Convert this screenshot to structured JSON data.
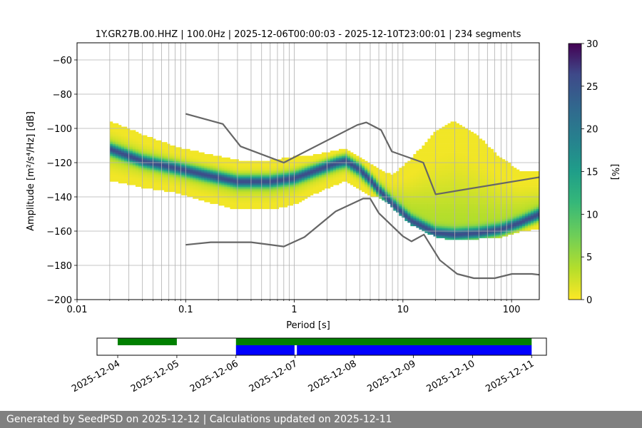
{
  "chart_data": [
    {
      "type": "heatmap",
      "title": "1Y.GR27B.00.HHZ | 100.0Hz | 2025-12-06T00:00:03 - 2025-12-10T23:00:01 | 234 segments",
      "xlabel": "Period [s]",
      "ylabel": "Amplitude [m²/s⁴/Hz] [dB]",
      "xscale": "log",
      "xlim": [
        0.01,
        180
      ],
      "ylim": [
        -200,
        -50
      ],
      "xticks": [
        "0.01",
        "0.1",
        "1",
        "10",
        "100"
      ],
      "yticks": [
        -60,
        -80,
        -100,
        -120,
        -140,
        -160,
        -180,
        -200
      ],
      "grid": true,
      "psd_mode_curve": {
        "period": [
          0.02,
          0.04,
          0.08,
          0.15,
          0.3,
          0.6,
          1.0,
          1.5,
          2.5,
          3.0,
          4.0,
          5.0,
          6.0,
          8.0,
          12,
          20,
          30,
          50,
          80,
          120,
          180
        ],
        "db": [
          -112,
          -119,
          -123,
          -127,
          -131,
          -131,
          -129,
          -125,
          -120,
          -119,
          -124,
          -130,
          -136,
          -144,
          -154,
          -161,
          -162,
          -161,
          -159,
          -155,
          -150
        ]
      },
      "psd_spread": {
        "period": [
          0.02,
          0.04,
          0.08,
          0.15,
          0.3,
          0.6,
          1.0,
          1.5,
          2.5,
          3.0,
          4.0,
          5.0,
          6.0,
          8.0,
          12,
          20,
          30,
          50,
          80,
          120,
          180
        ],
        "db_low": [
          -130,
          -134,
          -137,
          -142,
          -147,
          -147,
          -144,
          -138,
          -132,
          -130,
          -135,
          -139,
          -140,
          -145,
          -155,
          -163,
          -165,
          -164,
          -163,
          -160,
          -158
        ],
        "db_high": [
          -96,
          -104,
          -111,
          -115,
          -119,
          -119,
          -117,
          -116,
          -113,
          -112,
          -117,
          -121,
          -124,
          -128,
          -118,
          -102,
          -96,
          -105,
          -118,
          -125,
          -126
        ]
      },
      "noise_model_high": {
        "period": [
          0.1,
          0.22,
          0.32,
          0.8,
          3.8,
          4.6,
          6.3,
          7.9,
          15.4,
          20,
          180
        ],
        "db": [
          -91.5,
          -97.4,
          -110.5,
          -120,
          -98,
          -96.5,
          -101,
          -113.5,
          -120,
          -138.5,
          -128.5
        ]
      },
      "noise_model_low": {
        "period": [
          0.1,
          0.17,
          0.4,
          0.8,
          1.24,
          2.4,
          4.3,
          5.0,
          6.0,
          10,
          12,
          15.6,
          21.9,
          31.6,
          45,
          70,
          101,
          154,
          180
        ],
        "db": [
          -168,
          -166.5,
          -166.5,
          -169,
          -163.5,
          -148.5,
          -141,
          -141,
          -149.5,
          -163,
          -166,
          -162,
          -177,
          -185,
          -187.5,
          -187.5,
          -185,
          -185,
          -185.5
        ]
      },
      "colorbar": {
        "label": "[%]",
        "min": 0,
        "max": 30,
        "ticks": [
          0,
          5,
          10,
          15,
          20,
          25,
          30
        ],
        "colormap": "viridis_r"
      },
      "line_color": "#666666"
    },
    {
      "type": "timeline",
      "xticks": [
        "2025-12-04",
        "2025-12-05",
        "2025-12-06",
        "2025-12-07",
        "2025-12-08",
        "2025-12-09",
        "2025-12-10",
        "2025-12-11"
      ],
      "xlim_days": [
        -0.35,
        7.25
      ],
      "bars": [
        {
          "name": "green",
          "color": "#008000",
          "segments": [
            [
              0.0,
              1.0
            ],
            [
              2.0,
              7.0
            ]
          ]
        },
        {
          "name": "blue",
          "color": "#0000ff",
          "segments": [
            [
              2.0,
              2.99
            ],
            [
              3.03,
              7.0
            ]
          ]
        }
      ]
    }
  ],
  "footer": {
    "text": "Generated by SeedPSD on 2025-12-12 | Calculations updated on 2025-12-11"
  }
}
